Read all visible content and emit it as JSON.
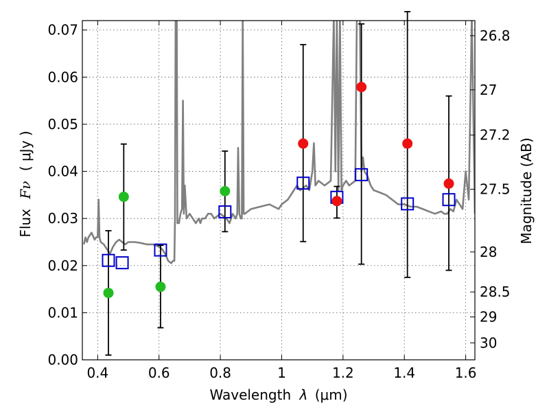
{
  "chart_data": {
    "type": "scatter",
    "title": "",
    "xlabel_text": "Wavelength",
    "xlabel_symbol": "λ",
    "xlabel_unit": "(μm)",
    "ylabel_text": "Flux",
    "ylabel_symbol": "Fν",
    "ylabel_unit": "( μJy )",
    "y2label": "Magnitude (AB)",
    "xlim": [
      0.35,
      1.63
    ],
    "ylim": [
      0.0,
      0.072
    ],
    "grid": true,
    "x_ticks": [
      0.4,
      0.6,
      0.8,
      1.0,
      1.2,
      1.4,
      1.6
    ],
    "x_tick_labels": [
      "0.4",
      "0.6",
      "0.8",
      "1",
      "1.2",
      "1.4",
      "1.6"
    ],
    "y_ticks": [
      0.0,
      0.01,
      0.02,
      0.03,
      0.04,
      0.05,
      0.06,
      0.07
    ],
    "y_tick_labels": [
      "0.00",
      "0.01",
      "0.02",
      "0.03",
      "0.04",
      "0.05",
      "0.06",
      "0.07"
    ],
    "mag_ticks": [
      {
        "label": "26.8",
        "flux": 0.0688
      },
      {
        "label": "27",
        "flux": 0.0573
      },
      {
        "label": "27.2",
        "flux": 0.0477
      },
      {
        "label": "27.5",
        "flux": 0.0362
      },
      {
        "label": "28",
        "flux": 0.0229
      },
      {
        "label": "28.5",
        "flux": 0.0144
      },
      {
        "label": "29",
        "flux": 0.0091
      },
      {
        "label": "30",
        "flux": 0.0036
      }
    ],
    "colors": {
      "model": "#808080",
      "green_points": "#22bb22",
      "red_points": "#ee1111",
      "model_fluxes": "#0000cc",
      "errorbars": "#000000"
    },
    "series": [
      {
        "name": "model_spectrum",
        "type": "line",
        "clip_top": 0.072,
        "x": [
          0.355,
          0.36,
          0.365,
          0.37,
          0.38,
          0.39,
          0.395,
          0.4,
          0.403,
          0.406,
          0.41,
          0.42,
          0.43,
          0.44,
          0.45,
          0.46,
          0.47,
          0.48,
          0.49,
          0.5,
          0.52,
          0.54,
          0.56,
          0.58,
          0.6,
          0.61,
          0.62,
          0.63,
          0.64,
          0.645,
          0.65,
          0.652,
          0.654,
          0.656,
          0.657,
          0.658,
          0.66,
          0.665,
          0.67,
          0.675,
          0.678,
          0.681,
          0.684,
          0.69,
          0.7,
          0.71,
          0.72,
          0.73,
          0.735,
          0.74,
          0.75,
          0.76,
          0.77,
          0.78,
          0.8,
          0.82,
          0.83,
          0.84,
          0.85,
          0.855,
          0.858,
          0.862,
          0.866,
          0.87,
          0.873,
          0.876,
          0.88,
          0.9,
          0.93,
          0.96,
          0.99,
          1.0,
          1.01,
          1.02,
          1.03,
          1.04,
          1.05,
          1.06,
          1.08,
          1.09,
          1.1,
          1.105,
          1.11,
          1.12,
          1.14,
          1.16,
          1.17,
          1.175,
          1.18,
          1.185,
          1.19,
          1.195,
          1.2,
          1.21,
          1.22,
          1.24,
          1.245,
          1.25,
          1.255,
          1.26,
          1.265,
          1.27,
          1.28,
          1.285,
          1.29,
          1.3,
          1.32,
          1.34,
          1.36,
          1.38,
          1.4,
          1.42,
          1.44,
          1.46,
          1.48,
          1.5,
          1.52,
          1.53,
          1.54,
          1.55,
          1.56,
          1.57,
          1.58,
          1.59,
          1.6,
          1.61,
          1.62,
          1.63
        ],
        "y": [
          0.0245,
          0.026,
          0.025,
          0.026,
          0.027,
          0.0255,
          0.026,
          0.026,
          0.034,
          0.026,
          0.025,
          0.0245,
          0.0235,
          0.0225,
          0.024,
          0.025,
          0.0255,
          0.025,
          0.0245,
          0.025,
          0.025,
          0.0248,
          0.0245,
          0.0245,
          0.024,
          0.0235,
          0.0225,
          0.021,
          0.0205,
          0.021,
          0.021,
          0.03,
          0.073,
          0.073,
          0.073,
          0.073,
          0.029,
          0.029,
          0.031,
          0.032,
          0.055,
          0.031,
          0.037,
          0.03,
          0.031,
          0.03,
          0.029,
          0.03,
          0.029,
          0.03,
          0.03,
          0.031,
          0.031,
          0.03,
          0.031,
          0.03,
          0.029,
          0.031,
          0.03,
          0.031,
          0.045,
          0.031,
          0.03,
          0.03,
          0.073,
          0.031,
          0.031,
          0.032,
          0.0325,
          0.033,
          0.032,
          0.033,
          0.0335,
          0.034,
          0.035,
          0.036,
          0.037,
          0.036,
          0.037,
          0.036,
          0.04,
          0.046,
          0.037,
          0.038,
          0.037,
          0.038,
          0.073,
          0.04,
          0.073,
          0.036,
          0.073,
          0.036,
          0.037,
          0.038,
          0.037,
          0.038,
          0.073,
          0.073,
          0.073,
          0.04,
          0.043,
          0.04,
          0.039,
          0.038,
          0.037,
          0.036,
          0.0355,
          0.035,
          0.034,
          0.033,
          0.033,
          0.0325,
          0.0325,
          0.032,
          0.0315,
          0.031,
          0.0315,
          0.031,
          0.031,
          0.032,
          0.0315,
          0.034,
          0.033,
          0.032,
          0.04,
          0.034,
          0.073,
          0.031
        ]
      },
      {
        "name": "observed_green",
        "type": "scatter",
        "x": [
          0.435,
          0.485,
          0.605,
          0.815
        ],
        "y": [
          0.0142,
          0.0346,
          0.0155,
          0.0358
        ]
      },
      {
        "name": "observed_red",
        "type": "scatter",
        "x": [
          1.07,
          1.18,
          1.26,
          1.41,
          1.545
        ],
        "y": [
          0.0459,
          0.0337,
          0.0579,
          0.0459,
          0.0374
        ]
      },
      {
        "name": "model_fluxes",
        "type": "scatter",
        "marker": "open-square",
        "x": [
          0.435,
          0.48,
          0.605,
          0.815,
          1.07,
          1.18,
          1.26,
          1.41,
          1.545
        ],
        "y": [
          0.0211,
          0.0206,
          0.0233,
          0.0314,
          0.0375,
          0.0345,
          0.0393,
          0.0331,
          0.034
        ]
      },
      {
        "name": "errorbars",
        "type": "errorbar",
        "x": [
          0.435,
          0.485,
          0.605,
          0.815,
          1.07,
          1.18,
          1.26,
          1.41,
          1.545
        ],
        "low": [
          0.001,
          0.0233,
          0.0068,
          0.0272,
          0.0251,
          0.0301,
          0.0203,
          0.0175,
          0.019
        ],
        "high": [
          0.0274,
          0.0458,
          0.0243,
          0.0443,
          0.0669,
          0.0368,
          0.0713,
          0.0739,
          0.056
        ]
      }
    ]
  }
}
